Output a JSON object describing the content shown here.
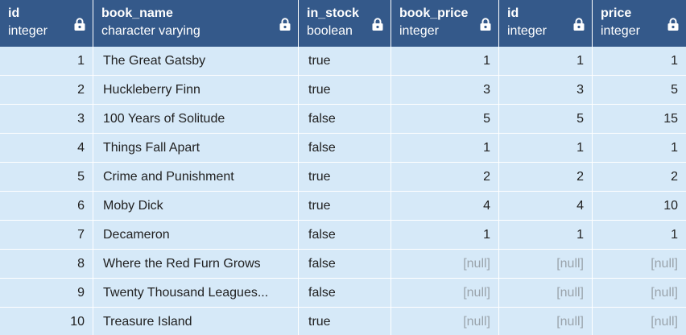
{
  "columns": [
    {
      "name": "id",
      "type": "integer"
    },
    {
      "name": "book_name",
      "type": "character varying"
    },
    {
      "name": "in_stock",
      "type": "boolean"
    },
    {
      "name": "book_price",
      "type": "integer"
    },
    {
      "name": "id",
      "type": "integer"
    },
    {
      "name": "price",
      "type": "integer"
    }
  ],
  "rows": [
    [
      "1",
      "The Great Gatsby",
      "true",
      "1",
      "1",
      "1"
    ],
    [
      "2",
      "Huckleberry Finn",
      "true",
      "3",
      "3",
      "5"
    ],
    [
      "3",
      "100 Years of Solitude",
      "false",
      "5",
      "5",
      "15"
    ],
    [
      "4",
      "Things Fall Apart",
      "false",
      "1",
      "1",
      "1"
    ],
    [
      "5",
      "Crime and Punishment",
      "true",
      "2",
      "2",
      "2"
    ],
    [
      "6",
      "Moby Dick",
      "true",
      "4",
      "4",
      "10"
    ],
    [
      "7",
      "Decameron",
      "false",
      "1",
      "1",
      "1"
    ],
    [
      "8",
      "Where the Red Furn Grows",
      "false",
      "[null]",
      "[null]",
      "[null]"
    ],
    [
      "9",
      "Twenty Thousand Leagues...",
      "false",
      "[null]",
      "[null]",
      "[null]"
    ],
    [
      "10",
      "Treasure Island",
      "true",
      "[null]",
      "[null]",
      "[null]"
    ]
  ],
  "icons": {
    "column_header": "lock-icon"
  },
  "colors": {
    "header_bg": "#34598a",
    "cell_bg": "#d6e9f8",
    "null_text": "#9aa3ab"
  }
}
